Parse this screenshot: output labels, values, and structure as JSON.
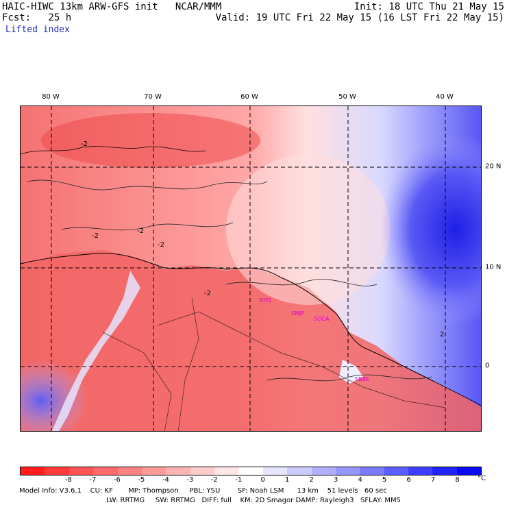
{
  "header": {
    "model_line": "HAIC-HIWC 13km ARW-GFS init   NCAR/MMM",
    "fcst_line": "Fcst:   25 h",
    "init_line": "Init: 18 UTC Thu 21 May 15",
    "valid_line": "Valid: 19 UTC Fri 22 May 15 (16 LST Fri 22 May 15)",
    "field_name": "Lifted index"
  },
  "map": {
    "lon_labels": [
      "80 W",
      "70 W",
      "60 W",
      "50 W",
      "40 W"
    ],
    "lat_labels": [
      "20 N",
      "10 N",
      "0"
    ],
    "contour_labels": [
      "-2",
      "-2",
      "-2",
      "-2",
      "-2",
      "2"
    ],
    "stations": [
      "SYEJ",
      "SMJP",
      "SOCA",
      "SBBE"
    ]
  },
  "colorbar": {
    "colors": [
      "#ff1c1c",
      "#ff3a3a",
      "#ff5252",
      "#ff6a6a",
      "#ff8282",
      "#ff9a9a",
      "#ffb4b4",
      "#ffcccc",
      "#ffe6e6",
      "#ffffff",
      "#e6e6ff",
      "#ccccff",
      "#b0b0ff",
      "#9696ff",
      "#7a7aff",
      "#5c5cff",
      "#3e3eff",
      "#2222f8",
      "#0a0aee"
    ],
    "tick_labels": [
      "-8",
      "-7",
      "-6",
      "-5",
      "-4",
      "-3",
      "-2",
      "-1",
      "0",
      "1",
      "2",
      "3",
      "4",
      "5",
      "6",
      "7",
      "8"
    ],
    "unit": "°C"
  },
  "footer": {
    "line1": "Model Info: V3.6.1    CU: KF       MP: Thompson     PBL: YSU        SF: Noah LSM      13 km    51 levels   60 sec",
    "line2": "LW: RRTMG     SW: RRTMG   DIFF: full    KM: 2D Smagor DAMP: Rayleigh3   SFLAY: MM5"
  }
}
